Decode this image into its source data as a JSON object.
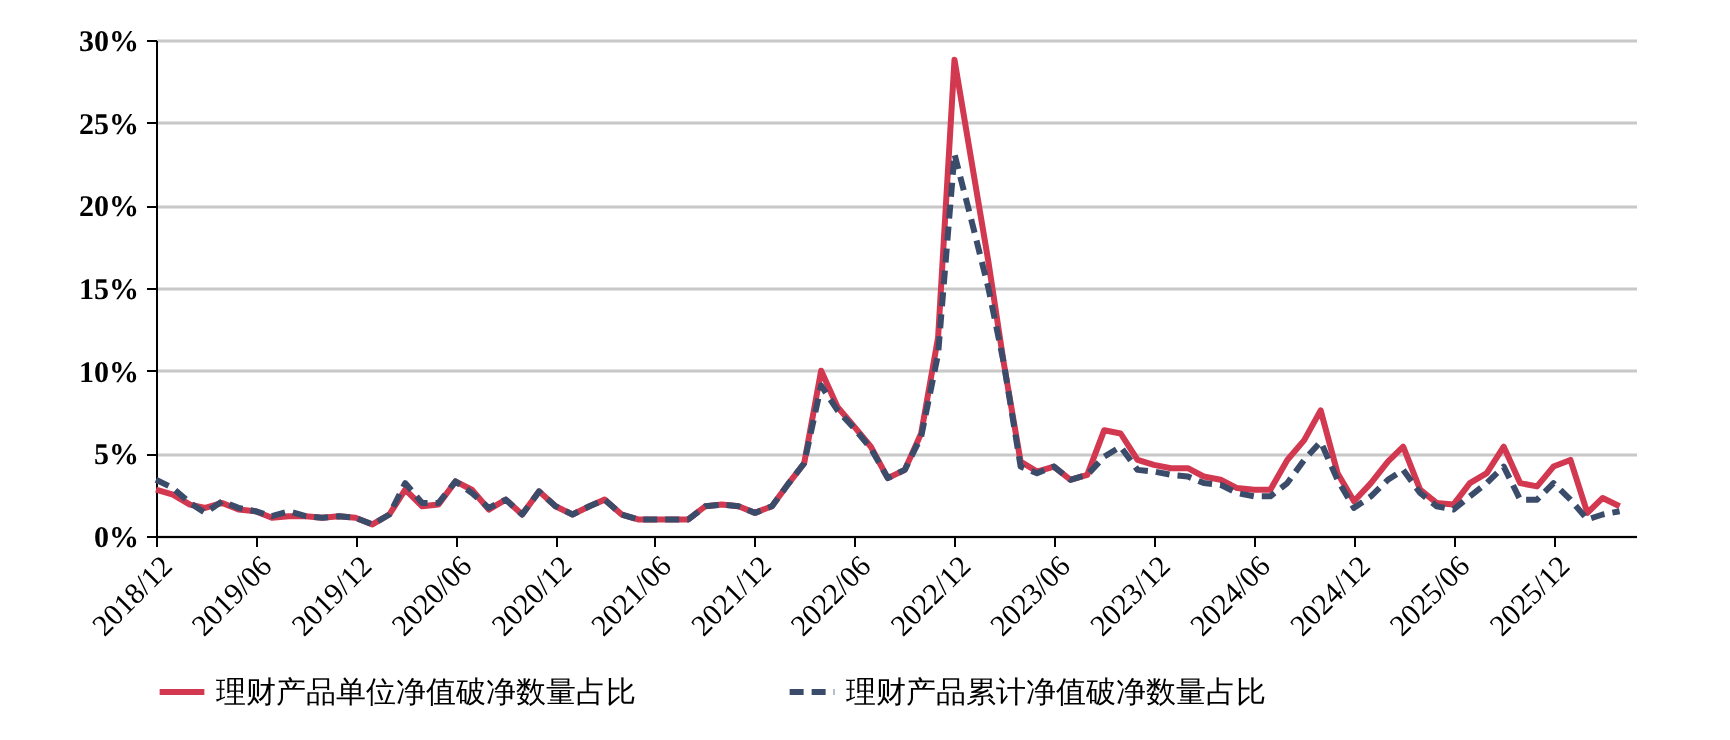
{
  "chart_data": {
    "type": "line",
    "x": [
      "2018-12",
      "2019-01",
      "2019-02",
      "2019-03",
      "2019-04",
      "2019-05",
      "2019-06",
      "2019-07",
      "2019-08",
      "2019-09",
      "2019-10",
      "2019-11",
      "2019-12",
      "2020-01",
      "2020-02",
      "2020-03",
      "2020-04",
      "2020-05",
      "2020-06",
      "2020-07",
      "2020-08",
      "2020-09",
      "2020-10",
      "2020-11",
      "2020-12",
      "2021-01",
      "2021-02",
      "2021-03",
      "2021-04",
      "2021-05",
      "2021-06",
      "2021-07",
      "2021-08",
      "2021-09",
      "2021-10",
      "2021-11",
      "2021-12",
      "2022-01",
      "2022-02",
      "2022-03",
      "2022-04",
      "2022-05",
      "2022-06",
      "2022-07",
      "2022-08",
      "2022-09",
      "2022-10",
      "2022-11",
      "2022-12",
      "2023-01",
      "2023-02",
      "2023-03",
      "2023-04",
      "2023-05",
      "2023-06",
      "2023-07",
      "2023-08",
      "2023-09",
      "2023-10",
      "2023-11",
      "2023-12",
      "2024-01",
      "2024-02",
      "2024-03",
      "2024-04",
      "2024-05",
      "2024-06",
      "2024-07",
      "2024-08",
      "2024-09",
      "2024-10",
      "2024-11",
      "2024-12",
      "2025-01",
      "2025-02",
      "2025-03",
      "2025-04",
      "2025-05",
      "2025-06",
      "2025-07",
      "2025-08",
      "2025-09",
      "2025-10",
      "2025-11",
      "2025-12",
      "2026-01",
      "2026-02",
      "2026-03",
      "2026-04"
    ],
    "series": [
      {
        "name": "理财产品单位净值破净数量占比",
        "color": "#d2384f",
        "line_style": "solid",
        "values": [
          2.8,
          2.5,
          1.9,
          1.7,
          2.0,
          1.6,
          1.5,
          1.1,
          1.2,
          1.2,
          1.1,
          1.2,
          1.1,
          0.7,
          1.3,
          2.8,
          1.8,
          1.9,
          3.3,
          2.8,
          1.6,
          2.2,
          1.3,
          2.7,
          1.8,
          1.3,
          1.8,
          2.2,
          1.3,
          1.0,
          1.0,
          1.0,
          1.0,
          1.8,
          1.9,
          1.8,
          1.4,
          1.8,
          3.2,
          4.4,
          10.0,
          7.8,
          6.6,
          5.4,
          3.5,
          4.0,
          6.2,
          12,
          28.8,
          22.7,
          16.6,
          10.5,
          4.5,
          3.9,
          4.2,
          3.4,
          3.7,
          6.4,
          6.2,
          4.6,
          4.3,
          4.1,
          4.1,
          3.6,
          3.4,
          2.9,
          2.8,
          2.8,
          4.6,
          5.8,
          7.6,
          3.8,
          2.1,
          3.2,
          4.5,
          5.4,
          2.8,
          2.0,
          1.9,
          3.2,
          3.8,
          5.4,
          3.2,
          3.0,
          4.2,
          4.6,
          1.4,
          2.3,
          1.8
        ]
      },
      {
        "name": "理财产品累计净值破净数量占比",
        "color": "#3b4c6b",
        "line_style": "dashed",
        "values": [
          3.4,
          2.9,
          2.0,
          1.4,
          2.1,
          1.7,
          1.5,
          1.2,
          1.5,
          1.2,
          1.1,
          1.2,
          1.1,
          0.7,
          1.3,
          3.2,
          2.0,
          2.0,
          3.3,
          2.6,
          1.7,
          2.2,
          1.3,
          2.7,
          1.8,
          1.3,
          1.8,
          2.2,
          1.3,
          1.0,
          1.0,
          1.0,
          1.0,
          1.8,
          1.9,
          1.8,
          1.4,
          1.8,
          3.2,
          4.4,
          9.1,
          7.6,
          6.5,
          5.3,
          3.5,
          4.0,
          6.0,
          11,
          23.1,
          19.1,
          15.0,
          10.5,
          4.2,
          3.8,
          4.2,
          3.4,
          3.7,
          4.8,
          5.4,
          4.0,
          3.9,
          3.7,
          3.6,
          3.2,
          3.1,
          2.6,
          2.4,
          2.4,
          3.2,
          4.6,
          5.7,
          3.4,
          1.7,
          2.4,
          3.4,
          4.0,
          2.6,
          1.8,
          1.6,
          2.4,
          3.2,
          4.2,
          2.2,
          2.2,
          3.2,
          2.2,
          1.0,
          1.3,
          1.5
        ]
      }
    ],
    "xlim": [
      "2018-12",
      "2026-05"
    ],
    "xticks": [
      {
        "value": "2018-12",
        "label": "2018/12"
      },
      {
        "value": "2019-06",
        "label": "2019/06"
      },
      {
        "value": "2019-12",
        "label": "2019/12"
      },
      {
        "value": "2020-06",
        "label": "2020/06"
      },
      {
        "value": "2020-12",
        "label": "2020/12"
      },
      {
        "value": "2021-06",
        "label": "2021/06"
      },
      {
        "value": "2021-12",
        "label": "2021/12"
      },
      {
        "value": "2022-06",
        "label": "2022/06"
      },
      {
        "value": "2022-12",
        "label": "2022/12"
      },
      {
        "value": "2023-06",
        "label": "2023/06"
      },
      {
        "value": "2023-12",
        "label": "2023/12"
      },
      {
        "value": "2024-06",
        "label": "2024/06"
      },
      {
        "value": "2024-12",
        "label": "2024/12"
      },
      {
        "value": "2025-06",
        "label": "2025/06"
      },
      {
        "value": "2025-12",
        "label": "2025/12"
      }
    ],
    "ylim": [
      0,
      30
    ],
    "yticks": [
      {
        "value": 0,
        "label": "0%"
      },
      {
        "value": 5,
        "label": "5%"
      },
      {
        "value": 10,
        "label": "10%"
      },
      {
        "value": 15,
        "label": "15%"
      },
      {
        "value": 20,
        "label": "20%"
      },
      {
        "value": 25,
        "label": "25%"
      },
      {
        "value": 30,
        "label": "30%"
      }
    ],
    "grid": "y",
    "legend": "bottom",
    "marker": "none"
  }
}
